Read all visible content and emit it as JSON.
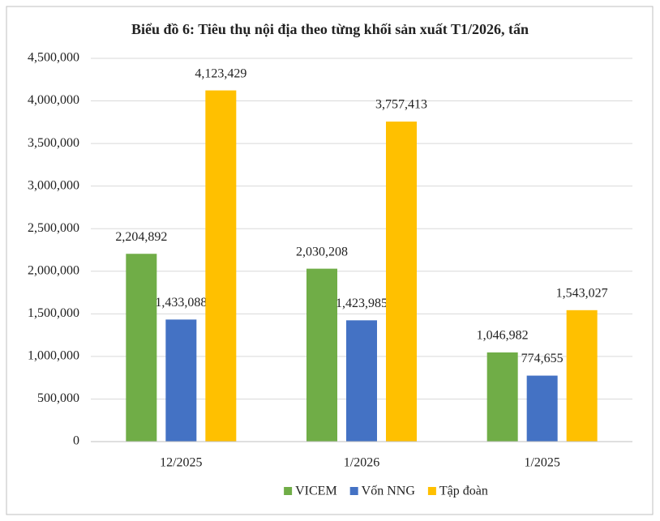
{
  "chart_data": {
    "type": "bar",
    "title": "Biểu đồ 6: Tiêu thụ nội địa theo từng khối sản xuất T1/2026, tấn",
    "categories": [
      "12/2025",
      "1/2026",
      "1/2025"
    ],
    "series": [
      {
        "name": "VICEM",
        "color": "#70ad47",
        "values": [
          2204892,
          2030208,
          1046982
        ],
        "value_labels": [
          "2,204,892",
          "2,030,208",
          "1,046,982"
        ]
      },
      {
        "name": "Vốn NNG",
        "color": "#4472c4",
        "values": [
          1433088,
          1423985,
          774655
        ],
        "value_labels": [
          "1,433,088",
          "1,423,985",
          "774,655"
        ]
      },
      {
        "name": "Tập đoàn",
        "color": "#ffc000",
        "values": [
          4123429,
          3757413,
          1543027
        ],
        "value_labels": [
          "4,123,429",
          "3,757,413",
          "1,543,027"
        ]
      }
    ],
    "ylim": [
      0,
      4500000
    ],
    "yticks": [
      0,
      {
        "value": 500000,
        "label": "500,000"
      },
      {
        "value": 1000000,
        "label": "1,000,000"
      },
      {
        "value": 1500000,
        "label": "1,500,000"
      },
      {
        "value": 2000000,
        "label": "2,000,000"
      },
      {
        "value": 2500000,
        "label": "2,500,000"
      },
      {
        "value": 3000000,
        "label": "3,000,000"
      },
      {
        "value": 3500000,
        "label": "3,500,000"
      },
      {
        "value": 4000000,
        "label": "4,000,000"
      },
      {
        "value": 4500000,
        "label": "4,500,000"
      }
    ],
    "grid": true,
    "legend": "bottom"
  }
}
